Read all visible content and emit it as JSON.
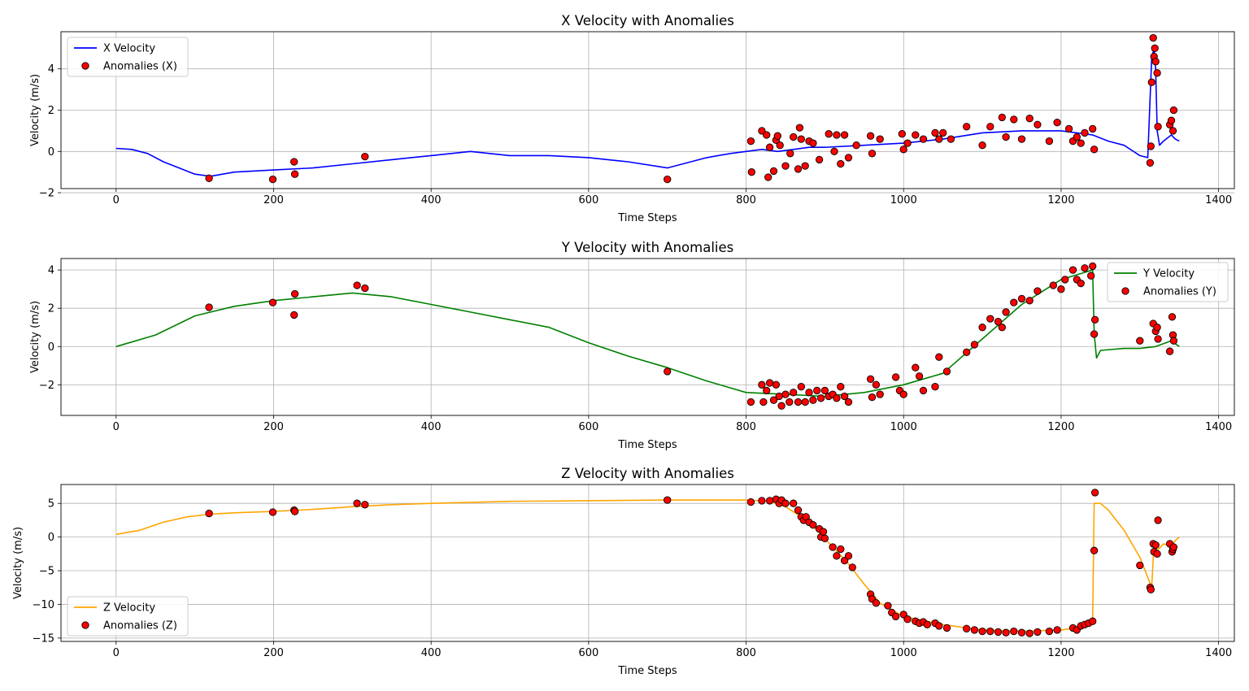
{
  "colors": {
    "x_line": "#0000ff",
    "y_line": "#008000",
    "z_line": "#ffa500",
    "anomaly_fill": "#ff0000",
    "anomaly_edge": "#000000",
    "grid": "#b0b0b0"
  },
  "chart_data": [
    {
      "type": "line",
      "title": "X Velocity with Anomalies",
      "xlabel": "Time Steps",
      "ylabel": "Velocity (m/s)",
      "xlim": [
        -70,
        1420
      ],
      "ylim": [
        -1.8,
        5.8
      ],
      "xticks": [
        0,
        200,
        400,
        600,
        800,
        1000,
        1200,
        1400
      ],
      "yticks": [
        -2,
        0,
        2,
        4
      ],
      "grid": true,
      "legend_loc": "upper-left",
      "legend": [
        "X Velocity",
        "Anomalies (X)"
      ],
      "series": [
        {
          "name": "X Velocity",
          "color": "x_line",
          "x": [
            0,
            20,
            40,
            60,
            80,
            100,
            120,
            150,
            200,
            250,
            300,
            350,
            400,
            450,
            500,
            550,
            600,
            650,
            700,
            750,
            780,
            800,
            820,
            840,
            860,
            880,
            900,
            950,
            1000,
            1050,
            1100,
            1150,
            1200,
            1240,
            1260,
            1280,
            1300,
            1310,
            1315,
            1318,
            1320,
            1322,
            1325,
            1330,
            1340,
            1345,
            1350
          ],
          "y": [
            0.15,
            0.1,
            -0.1,
            -0.5,
            -0.8,
            -1.1,
            -1.2,
            -1.0,
            -0.9,
            -0.8,
            -0.6,
            -0.4,
            -0.2,
            0.0,
            -0.2,
            -0.2,
            -0.3,
            -0.5,
            -0.8,
            -0.3,
            -0.1,
            0.0,
            0.1,
            0.0,
            0.1,
            0.2,
            0.2,
            0.3,
            0.4,
            0.6,
            0.9,
            1.0,
            1.0,
            0.8,
            0.5,
            0.3,
            -0.2,
            -0.3,
            4.5,
            5.0,
            4.0,
            1.0,
            0.3,
            0.5,
            0.8,
            0.6,
            0.5
          ]
        }
      ],
      "anomalies": {
        "name": "Anomalies (X)",
        "x": [
          118,
          199,
          226,
          227,
          316,
          700,
          806,
          807,
          820,
          826,
          828,
          830,
          835,
          838,
          840,
          843,
          850,
          856,
          860,
          866,
          868,
          870,
          875,
          880,
          885,
          893,
          905,
          912,
          915,
          920,
          925,
          930,
          940,
          958,
          960,
          970,
          998,
          1000,
          1005,
          1015,
          1025,
          1040,
          1045,
          1050,
          1060,
          1080,
          1100,
          1110,
          1125,
          1130,
          1140,
          1150,
          1160,
          1170,
          1185,
          1195,
          1210,
          1215,
          1220,
          1225,
          1230,
          1240,
          1242,
          1313,
          1314,
          1315,
          1317,
          1318,
          1319,
          1320,
          1322,
          1323,
          1338,
          1340,
          1342,
          1343
        ],
        "y": [
          -1.3,
          -1.35,
          -0.5,
          -1.1,
          -0.25,
          -1.35,
          0.5,
          -1.0,
          1.0,
          0.8,
          -1.25,
          0.2,
          -0.95,
          0.55,
          0.75,
          0.3,
          -0.7,
          -0.1,
          0.7,
          -0.85,
          1.15,
          0.6,
          -0.7,
          0.5,
          0.4,
          -0.4,
          0.85,
          0.0,
          0.8,
          -0.6,
          0.8,
          -0.3,
          0.3,
          0.75,
          -0.1,
          0.6,
          0.85,
          0.1,
          0.4,
          0.8,
          0.6,
          0.9,
          0.6,
          0.9,
          0.6,
          1.2,
          0.3,
          1.2,
          1.65,
          0.7,
          1.55,
          0.6,
          1.6,
          1.3,
          0.5,
          1.4,
          1.1,
          0.5,
          0.7,
          0.4,
          0.9,
          1.1,
          0.1,
          -0.55,
          0.25,
          3.35,
          5.5,
          4.6,
          5.0,
          4.35,
          3.8,
          1.2,
          1.3,
          1.5,
          1.0,
          2.0
        ]
      }
    },
    {
      "type": "line",
      "title": "Y Velocity with Anomalies",
      "xlabel": "Time Steps",
      "ylabel": "Velocity (m/s)",
      "xlim": [
        -70,
        1420
      ],
      "ylim": [
        -3.6,
        4.6
      ],
      "xticks": [
        0,
        200,
        400,
        600,
        800,
        1000,
        1200,
        1400
      ],
      "yticks": [
        -2,
        0,
        2,
        4
      ],
      "grid": true,
      "legend_loc": "upper-right",
      "legend": [
        "Y Velocity",
        "Anomalies (Y)"
      ],
      "series": [
        {
          "name": "Y Velocity",
          "color": "y_line",
          "x": [
            0,
            50,
            100,
            150,
            200,
            250,
            300,
            350,
            400,
            450,
            500,
            550,
            600,
            650,
            700,
            750,
            800,
            850,
            900,
            950,
            1000,
            1050,
            1100,
            1150,
            1200,
            1240,
            1242,
            1245,
            1250,
            1280,
            1300,
            1320,
            1340,
            1350
          ],
          "y": [
            0.0,
            0.6,
            1.6,
            2.1,
            2.4,
            2.6,
            2.8,
            2.6,
            2.2,
            1.8,
            1.4,
            1.0,
            0.2,
            -0.5,
            -1.1,
            -1.8,
            -2.4,
            -2.5,
            -2.6,
            -2.4,
            -2.0,
            -1.4,
            0.4,
            2.2,
            3.5,
            4.0,
            0.7,
            -0.6,
            -0.2,
            -0.1,
            -0.1,
            0.0,
            0.3,
            0.0
          ]
        }
      ],
      "anomalies": {
        "name": "Anomalies (Y)",
        "x": [
          118,
          199,
          226,
          227,
          306,
          316,
          700,
          806,
          820,
          822,
          826,
          830,
          835,
          838,
          842,
          845,
          850,
          855,
          860,
          866,
          870,
          875,
          880,
          885,
          890,
          895,
          900,
          905,
          910,
          915,
          920,
          925,
          930,
          958,
          960,
          965,
          970,
          990,
          995,
          1000,
          1015,
          1020,
          1025,
          1040,
          1045,
          1055,
          1080,
          1090,
          1100,
          1110,
          1120,
          1125,
          1130,
          1140,
          1150,
          1160,
          1170,
          1190,
          1200,
          1205,
          1215,
          1220,
          1225,
          1230,
          1238,
          1240,
          1242,
          1243,
          1300,
          1317,
          1320,
          1322,
          1323,
          1338,
          1341,
          1342,
          1343
        ],
        "y": [
          2.05,
          2.3,
          1.65,
          2.75,
          3.2,
          3.05,
          -1.3,
          -2.9,
          -2.0,
          -2.9,
          -2.3,
          -1.9,
          -2.8,
          -2.0,
          -2.6,
          -3.1,
          -2.5,
          -2.9,
          -2.4,
          -2.9,
          -2.1,
          -2.9,
          -2.4,
          -2.8,
          -2.3,
          -2.7,
          -2.3,
          -2.6,
          -2.5,
          -2.7,
          -2.1,
          -2.6,
          -2.9,
          -1.7,
          -2.65,
          -2.0,
          -2.5,
          -1.6,
          -2.3,
          -2.5,
          -1.1,
          -1.55,
          -2.3,
          -2.1,
          -0.55,
          -1.3,
          -0.3,
          0.1,
          1.0,
          1.45,
          1.3,
          1.0,
          1.8,
          2.3,
          2.5,
          2.4,
          2.9,
          3.2,
          3.0,
          3.5,
          4.0,
          3.5,
          3.3,
          4.1,
          3.7,
          4.2,
          0.65,
          1.4,
          0.3,
          1.2,
          0.8,
          1.0,
          0.4,
          -0.25,
          1.55,
          0.6,
          0.3
        ]
      }
    },
    {
      "type": "line",
      "title": "Z Velocity with Anomalies",
      "xlabel": "Time Steps",
      "ylabel": "Velocity (m/s)",
      "xlim": [
        -70,
        1420
      ],
      "ylim": [
        -15.5,
        7.8
      ],
      "xticks": [
        0,
        200,
        400,
        600,
        800,
        1000,
        1200,
        1400
      ],
      "yticks": [
        -15,
        -10,
        -5,
        0,
        5
      ],
      "grid": true,
      "legend_loc": "lower-left",
      "legend": [
        "Z Velocity",
        "Anomalies (Z)"
      ],
      "series": [
        {
          "name": "Z Velocity",
          "color": "z_line",
          "x": [
            0,
            30,
            60,
            90,
            120,
            150,
            200,
            250,
            300,
            350,
            400,
            500,
            600,
            700,
            800,
            830,
            850,
            870,
            890,
            910,
            930,
            950,
            970,
            1000,
            1050,
            1100,
            1150,
            1200,
            1230,
            1240,
            1242,
            1250,
            1260,
            1280,
            1300,
            1310,
            1315,
            1318,
            1322,
            1330,
            1340,
            1345,
            1350
          ],
          "y": [
            0.4,
            1.0,
            2.2,
            3.0,
            3.4,
            3.6,
            3.8,
            4.1,
            4.5,
            4.8,
            5.0,
            5.3,
            5.4,
            5.5,
            5.5,
            5.3,
            4.5,
            3.0,
            1.0,
            -1.5,
            -4.0,
            -7.0,
            -9.8,
            -11.8,
            -13.0,
            -13.8,
            -14.0,
            -13.8,
            -13.3,
            -12.5,
            5.0,
            5.0,
            4.0,
            1.0,
            -3.0,
            -6.0,
            -7.5,
            -1.0,
            -2.0,
            -1.0,
            -1.5,
            -0.5,
            0.0
          ]
        }
      ],
      "anomalies": {
        "name": "Anomalies (Z)",
        "x": [
          118,
          199,
          226,
          227,
          306,
          316,
          700,
          806,
          820,
          830,
          838,
          842,
          845,
          850,
          860,
          866,
          870,
          873,
          876,
          880,
          885,
          893,
          895,
          898,
          900,
          910,
          915,
          920,
          925,
          930,
          935,
          958,
          960,
          965,
          980,
          985,
          990,
          1000,
          1005,
          1015,
          1020,
          1025,
          1030,
          1040,
          1045,
          1055,
          1080,
          1090,
          1100,
          1110,
          1120,
          1130,
          1140,
          1150,
          1160,
          1170,
          1185,
          1195,
          1215,
          1220,
          1225,
          1230,
          1235,
          1240,
          1242,
          1243,
          1300,
          1313,
          1314,
          1317,
          1318,
          1320,
          1322,
          1323,
          1338,
          1341,
          1342,
          1343
        ],
        "y": [
          3.5,
          3.7,
          4.0,
          3.8,
          5.0,
          4.8,
          5.5,
          5.2,
          5.4,
          5.4,
          5.6,
          5.0,
          5.5,
          5.0,
          5.0,
          4.0,
          3.0,
          2.5,
          3.0,
          2.2,
          1.8,
          1.2,
          0.0,
          0.8,
          -0.2,
          -1.5,
          -2.8,
          -1.8,
          -3.5,
          -2.8,
          -4.5,
          -8.5,
          -9.2,
          -9.8,
          -10.2,
          -11.2,
          -11.8,
          -11.5,
          -12.2,
          -12.5,
          -12.8,
          -12.6,
          -13.0,
          -12.8,
          -13.2,
          -13.5,
          -13.6,
          -13.8,
          -14.0,
          -14.0,
          -14.1,
          -14.2,
          -14.0,
          -14.2,
          -14.3,
          -14.1,
          -14.0,
          -13.8,
          -13.5,
          -13.8,
          -13.2,
          -13.0,
          -12.8,
          -12.5,
          -2.0,
          6.6,
          -4.2,
          -7.5,
          -7.8,
          -1.0,
          -2.2,
          -1.2,
          -2.5,
          2.5,
          -1.0,
          -2.2,
          -1.8,
          -1.5
        ]
      }
    }
  ]
}
